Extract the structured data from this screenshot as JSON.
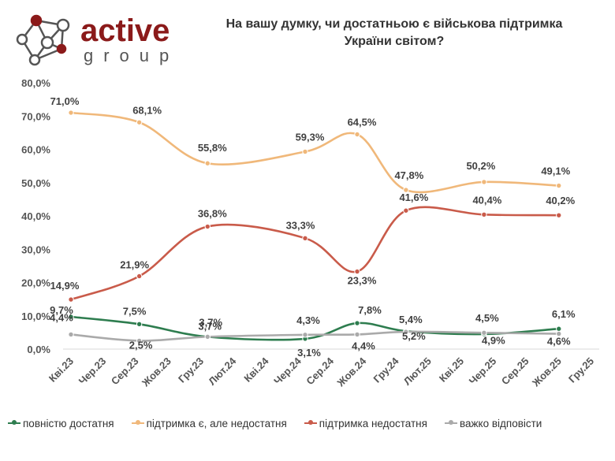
{
  "brand": {
    "name_top": "active",
    "name_bottom": "group",
    "color_dark": "#8b1a1a",
    "color_gray": "#555555"
  },
  "title_lines": [
    "На вашу думку, чи достатньою є військова підтримка",
    "України світом?"
  ],
  "chart_data": {
    "type": "line",
    "categories": [
      "Кві.23",
      "Чер.23",
      "Сер.23",
      "Жов.23",
      "Гру.23",
      "Лют.24",
      "Кві.24",
      "Чер.24",
      "Сер.24",
      "Жов.24",
      "Гру.24",
      "Лют.25",
      "Кві.25",
      "Чер.25",
      "Сер.25",
      "Жов.25",
      "Гру.25"
    ],
    "ylim": [
      0,
      80
    ],
    "yticks": [
      0,
      10,
      20,
      30,
      40,
      50,
      60,
      70,
      80
    ],
    "ytick_labels": [
      "0,0%",
      "10,0%",
      "20,0%",
      "30,0%",
      "40,0%",
      "50,0%",
      "60,0%",
      "70,0%",
      "80,0%"
    ],
    "x_positions": [
      0,
      1.3,
      2.1,
      4.2,
      7.2,
      8.8,
      10.3,
      12.7,
      15.0
    ],
    "grid": false,
    "legend": "bottom",
    "series": [
      {
        "name": "повністю достатня",
        "color": "#2e7d4f",
        "values": [
          9.7,
          7.5,
          3.7,
          3.1,
          7.8,
          5.4,
          4.5,
          6.1
        ],
        "x": [
          0,
          2.1,
          4.2,
          7.2,
          8.8,
          10.3,
          12.7,
          15.0
        ],
        "labels": [
          "9,7%",
          "7,5%",
          "3,7%",
          "3,1%",
          "7,8%",
          "5,4%",
          "4,5%",
          "6,1%"
        ]
      },
      {
        "name": "підтримка є, але недостатня",
        "color": "#f0b87a",
        "values": [
          71.0,
          68.1,
          55.8,
          59.3,
          64.5,
          47.8,
          50.2,
          49.1
        ],
        "x": [
          0,
          2.1,
          4.2,
          7.2,
          8.8,
          10.3,
          12.7,
          15.0
        ],
        "labels": [
          "71,0%",
          "68,1%",
          "55,8%",
          "59,3%",
          "64,5%",
          "47,8%",
          "50,2%",
          "49,1%"
        ]
      },
      {
        "name": "підтримка недостатня",
        "color": "#c95b4a",
        "values": [
          14.9,
          21.9,
          36.8,
          33.3,
          23.3,
          41.6,
          40.4,
          40.2
        ],
        "x": [
          0,
          2.1,
          4.2,
          7.2,
          8.8,
          10.3,
          12.7,
          15.0
        ],
        "labels": [
          "14,9%",
          "21,9%",
          "36,8%",
          "33,3%",
          "23,3%",
          "41,6%",
          "40,4%",
          "40,2%"
        ]
      },
      {
        "name": "важко відповісти",
        "color": "#aaaaaa",
        "values": [
          4.4,
          2.5,
          3.7,
          4.3,
          4.4,
          5.2,
          4.9,
          4.6
        ],
        "x": [
          0,
          2.1,
          4.2,
          7.2,
          8.8,
          10.3,
          12.7,
          15.0
        ],
        "labels": [
          "4,4%",
          "2,5%",
          "3,7%",
          "4,3%",
          "4,4%",
          "5,2%",
          "4,9%",
          "4,6%"
        ]
      }
    ]
  }
}
